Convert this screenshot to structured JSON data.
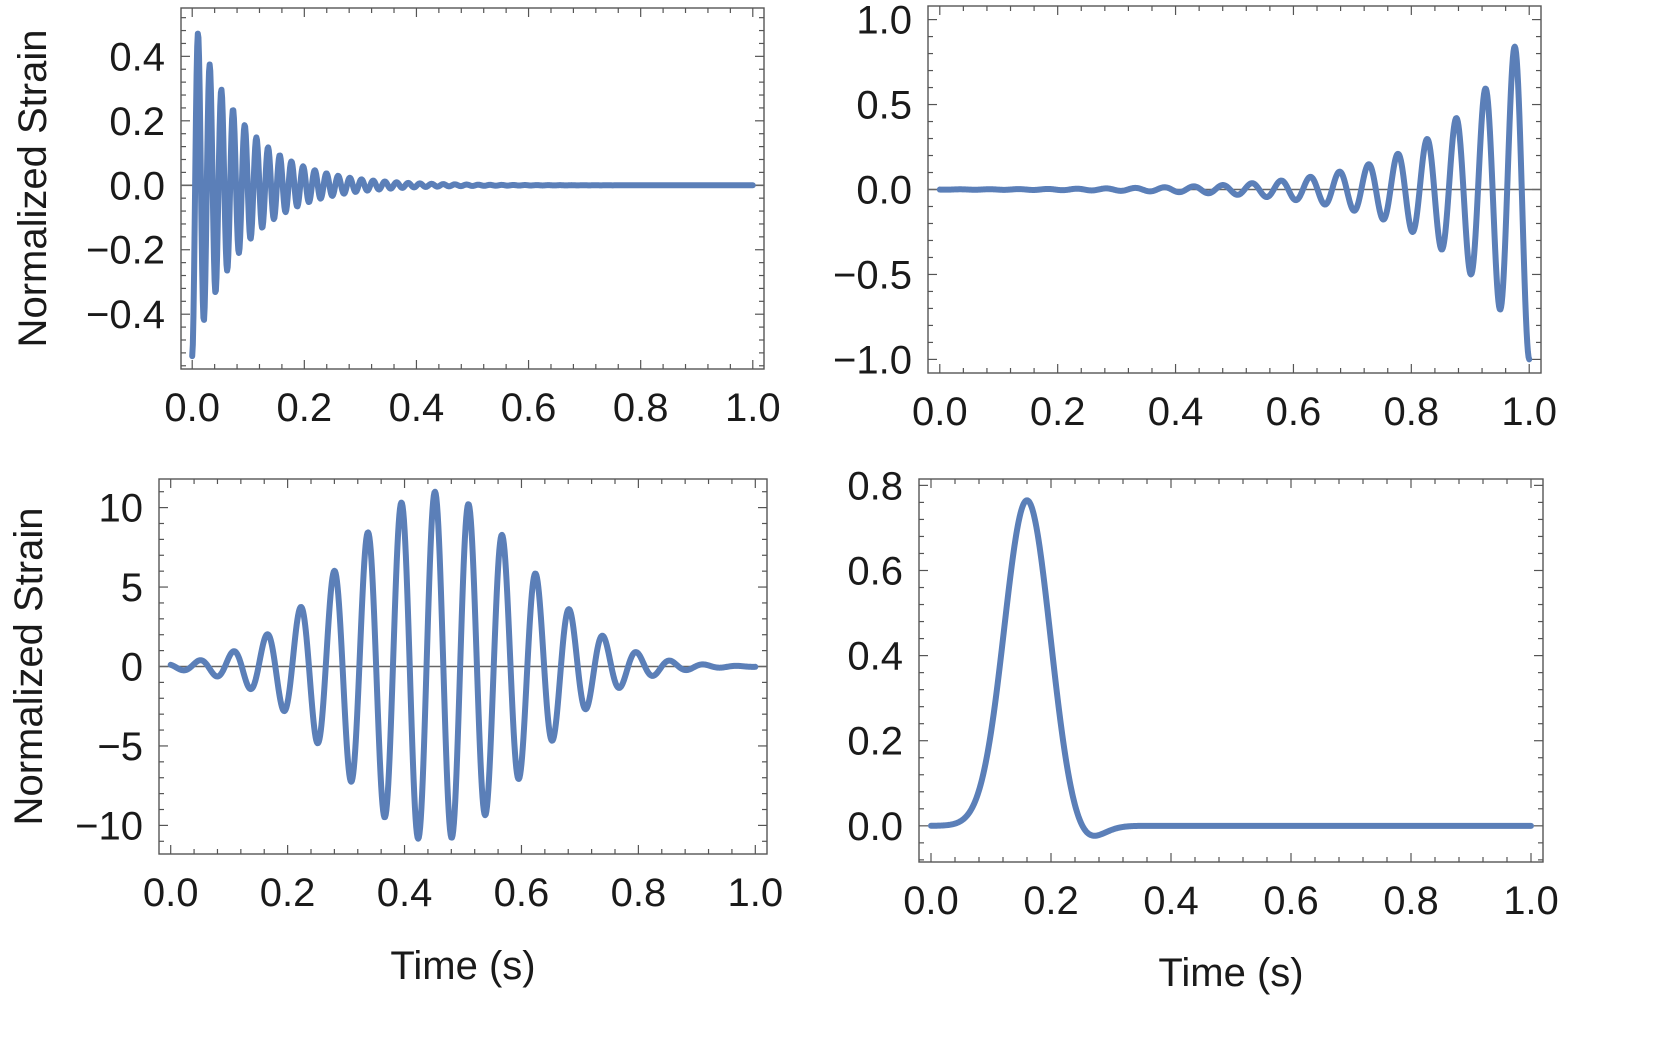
{
  "figure": {
    "line_color": "#5b7fb8",
    "axis_color": "#555555",
    "zero_line_color": "#666666"
  },
  "chart_data": [
    {
      "type": "line",
      "panel": "top-left",
      "title": "",
      "xlabel": "",
      "ylabel": "Normalized Strain",
      "xlim": [
        -0.02,
        1.02
      ],
      "ylim": [
        -0.57,
        0.55
      ],
      "xticks": [
        0.0,
        0.2,
        0.4,
        0.6,
        0.8,
        1.0
      ],
      "xtick_labels": [
        "0.0",
        "0.2",
        "0.4",
        "0.6",
        "0.8",
        "1.0"
      ],
      "yticks": [
        0.4,
        0.2,
        0.0,
        -0.2,
        -0.4
      ],
      "ytick_labels": [
        "0.4",
        "0.2",
        "0.0",
        "−0.2",
        "−0.4"
      ],
      "grid": false,
      "legend": "none",
      "zero_line": true,
      "series": [
        {
          "shape": "ringdown: exponentially damped sinusoid",
          "x_start": 0.0,
          "x_end": 1.0,
          "peak_amplitude": 0.53,
          "decay_time": 0.09,
          "frequency_hz": 48,
          "points": 900
        }
      ]
    },
    {
      "type": "line",
      "panel": "top-right",
      "title": "",
      "xlabel": "",
      "ylabel": "",
      "xlim": [
        -0.02,
        1.02
      ],
      "ylim": [
        -1.08,
        1.08
      ],
      "xticks": [
        0.0,
        0.2,
        0.4,
        0.6,
        0.8,
        1.0
      ],
      "xtick_labels": [
        "0.0",
        "0.2",
        "0.4",
        "0.6",
        "0.8",
        "1.0"
      ],
      "yticks": [
        1.0,
        0.5,
        0.0,
        -0.5,
        -1.0
      ],
      "ytick_labels": [
        "1.0",
        "0.5",
        "0.0",
        "−0.5",
        "−1.0"
      ],
      "grid": false,
      "legend": "none",
      "zero_line": true,
      "series": [
        {
          "shape": "chirp: amplitude grows toward the end",
          "x_start": 0.0,
          "x_end": 1.0,
          "peak_amplitude": 1.0,
          "growth_rate": 7,
          "frequency_hz": 20.2,
          "points": 900
        }
      ]
    },
    {
      "type": "line",
      "panel": "bottom-left",
      "title": "",
      "xlabel": "Time (s)",
      "ylabel": "Normalized Strain",
      "xlim": [
        -0.02,
        1.02
      ],
      "ylim": [
        -11.8,
        11.8
      ],
      "xticks": [
        0.0,
        0.2,
        0.4,
        0.6,
        0.8,
        1.0
      ],
      "xtick_labels": [
        "0.0",
        "0.2",
        "0.4",
        "0.6",
        "0.8",
        "1.0"
      ],
      "yticks": [
        10,
        5,
        0,
        -5,
        -10
      ],
      "ytick_labels": [
        "10",
        "5",
        "0",
        "−5",
        "−10"
      ],
      "grid": false,
      "legend": "none",
      "zero_line": true,
      "series": [
        {
          "shape": "sine-gaussian wave packet",
          "x_start": 0.0,
          "x_end": 1.0,
          "peak_amplitude": 11.0,
          "center": 0.45,
          "width_sigma": 0.155,
          "frequency_hz": 17.4,
          "points": 900
        }
      ]
    },
    {
      "type": "line",
      "panel": "bottom-right",
      "title": "",
      "xlabel": "Time (s)",
      "ylabel": "",
      "xlim": [
        -0.02,
        1.02
      ],
      "ylim": [
        -0.085,
        0.815
      ],
      "xticks": [
        0.0,
        0.2,
        0.4,
        0.6,
        0.8,
        1.0
      ],
      "xtick_labels": [
        "0.0",
        "0.2",
        "0.4",
        "0.6",
        "0.8",
        "1.0"
      ],
      "yticks": [
        0.8,
        0.6,
        0.4,
        0.2,
        0.0
      ],
      "ytick_labels": [
        "0.8",
        "0.6",
        "0.4",
        "0.2",
        "0.0"
      ],
      "grid": false,
      "legend": "none",
      "zero_line": false,
      "series": [
        {
          "shape": "single pulse with small undershoot",
          "x_start": 0.0,
          "x_end": 1.0,
          "peak_x": 0.16,
          "peak_y": 0.765,
          "min_x": 0.255,
          "min_y": -0.04,
          "points": 900
        }
      ]
    }
  ]
}
